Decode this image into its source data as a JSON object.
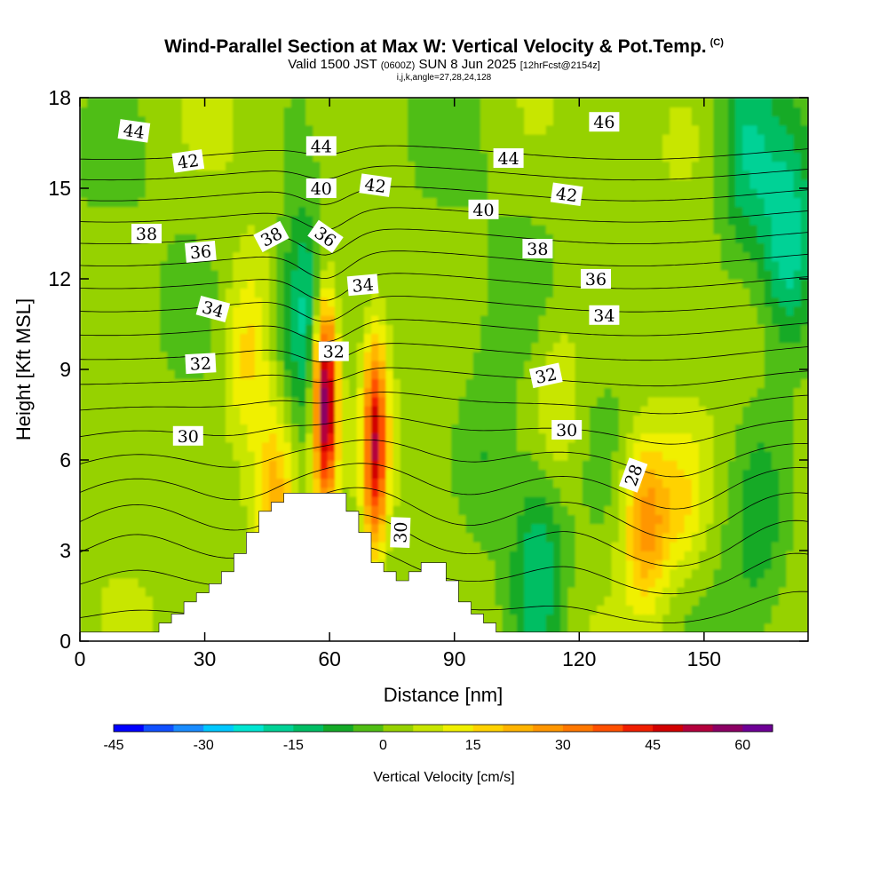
{
  "title": {
    "main": "Wind-Parallel Section at Max W: Vertical Velocity & Pot.Temp.",
    "tag": "(C)",
    "valid_prefix": "Valid 1500 JST",
    "valid_utc": "(0600Z)",
    "valid_date": "SUN 8 Jun 2025",
    "valid_fcst": "[12hrFcst@2154z]",
    "indices": "i,j,k,angle=27,28,24,128"
  },
  "colors": {
    "bands": [
      "#0000ff",
      "#1050ff",
      "#1a8cff",
      "#00c8ff",
      "#00e6d2",
      "#00d296",
      "#00be64",
      "#14aa28",
      "#50be14",
      "#96d200",
      "#c8e600",
      "#f0f000",
      "#ffd200",
      "#ffb400",
      "#ff9600",
      "#ff7800",
      "#ff5000",
      "#f01e00",
      "#d20000",
      "#b4003c",
      "#8c0064",
      "#6e0096"
    ],
    "terrain": "#ffffff",
    "contour": "#000000"
  },
  "chart_data": {
    "type": "heatmap",
    "xlabel": "Distance [nm]",
    "ylabel": "Height [Kft MSL]",
    "xlim": [
      0,
      175
    ],
    "ylim": [
      0,
      18
    ],
    "xticks": [
      "0",
      "30",
      "60",
      "90",
      "120",
      "150"
    ],
    "xtick_values": [
      0,
      30,
      60,
      90,
      120,
      150
    ],
    "yticks": [
      "0",
      "3",
      "6",
      "9",
      "12",
      "15",
      "18"
    ],
    "ytick_values": [
      0,
      3,
      6,
      9,
      12,
      15,
      18
    ],
    "colorbar": {
      "title": "Vertical Velocity [cm/s]",
      "min": -45,
      "max": 65,
      "step": 5,
      "labels": [
        "-45",
        "-30",
        "-15",
        "0",
        "15",
        "30",
        "45",
        "60"
      ],
      "label_values": [
        -45,
        -30,
        -15,
        0,
        15,
        30,
        45,
        60
      ]
    },
    "updrafts": [
      {
        "x": 59,
        "y": 8.0,
        "w_max": 62
      },
      {
        "x": 71,
        "y": 6.5,
        "w_max": 45
      },
      {
        "x": 47,
        "y": 5.0,
        "w_max": 25
      },
      {
        "x": 136,
        "y": 4.0,
        "w_max": 28
      },
      {
        "x": 40,
        "y": 9.5,
        "w_max": 15
      },
      {
        "x": 145,
        "y": 4.5,
        "w_max": 12
      },
      {
        "x": 115,
        "y": 8.0,
        "w_max": 10
      }
    ],
    "downdrafts": [
      {
        "x": 54,
        "y": 11.0,
        "w_min": -22
      },
      {
        "x": 110,
        "y": 2.5,
        "w_min": -18
      },
      {
        "x": 170,
        "y": 13.0,
        "w_min": -22
      },
      {
        "x": 160,
        "y": 16.0,
        "w_min": -15
      },
      {
        "x": 98,
        "y": 6.0,
        "w_min": -8
      },
      {
        "x": 163,
        "y": 4.0,
        "w_min": -10
      }
    ],
    "terrain": {
      "x": [
        0,
        19,
        19,
        22,
        22,
        25,
        25,
        28,
        28,
        31,
        31,
        34,
        34,
        37,
        37,
        40,
        40,
        43,
        43,
        46,
        46,
        49,
        49,
        52,
        52,
        64,
        64,
        67,
        67,
        70,
        70,
        73,
        73,
        76,
        76,
        79,
        79,
        82,
        82,
        88,
        88,
        91,
        91,
        94,
        94,
        97,
        97,
        100,
        100,
        103,
        103,
        175
      ],
      "height": [
        0.3,
        0.3,
        0.6,
        0.6,
        0.9,
        0.9,
        1.3,
        1.3,
        1.6,
        1.6,
        1.9,
        1.9,
        2.3,
        2.3,
        2.9,
        2.9,
        3.6,
        3.6,
        4.3,
        4.3,
        4.6,
        4.6,
        4.9,
        4.9,
        4.9,
        4.9,
        4.3,
        4.3,
        3.6,
        3.6,
        2.6,
        2.6,
        2.3,
        2.3,
        2.0,
        2.0,
        2.3,
        2.3,
        2.6,
        2.6,
        2.0,
        2.0,
        1.3,
        1.3,
        0.9,
        0.9,
        0.6,
        0.6,
        0.3,
        0.3,
        0.3,
        0.3
      ]
    },
    "theta_contours": {
      "levels": [
        28,
        29,
        30,
        31,
        32,
        33,
        34,
        35,
        36,
        37,
        38,
        39,
        40,
        41,
        42,
        43,
        44,
        45,
        46
      ],
      "labels": [
        {
          "text": "44",
          "x": 13,
          "y": 16.9,
          "angle": 8
        },
        {
          "text": "42",
          "x": 26,
          "y": 15.9,
          "angle": -8
        },
        {
          "text": "38",
          "x": 16,
          "y": 13.5,
          "angle": 0
        },
        {
          "text": "36",
          "x": 29,
          "y": 12.9,
          "angle": -5
        },
        {
          "text": "34",
          "x": 32,
          "y": 11.0,
          "angle": 15
        },
        {
          "text": "32",
          "x": 29,
          "y": 9.2,
          "angle": -3
        },
        {
          "text": "30",
          "x": 26,
          "y": 6.8,
          "angle": 0
        },
        {
          "text": "44",
          "x": 58,
          "y": 16.4,
          "angle": 0
        },
        {
          "text": "40",
          "x": 58,
          "y": 15.0,
          "angle": 0
        },
        {
          "text": "38",
          "x": 46,
          "y": 13.4,
          "angle": -28
        },
        {
          "text": "36",
          "x": 59,
          "y": 13.4,
          "angle": 35
        },
        {
          "text": "42",
          "x": 71,
          "y": 15.1,
          "angle": 8
        },
        {
          "text": "34",
          "x": 68,
          "y": 11.8,
          "angle": -5
        },
        {
          "text": "32",
          "x": 61,
          "y": 9.6,
          "angle": 0
        },
        {
          "text": "30",
          "x": 77,
          "y": 3.6,
          "angle": -88
        },
        {
          "text": "44",
          "x": 103,
          "y": 16.0,
          "angle": 0
        },
        {
          "text": "40",
          "x": 97,
          "y": 14.3,
          "angle": 0
        },
        {
          "text": "38",
          "x": 110,
          "y": 13.0,
          "angle": 0
        },
        {
          "text": "42",
          "x": 117,
          "y": 14.8,
          "angle": 8
        },
        {
          "text": "46",
          "x": 126,
          "y": 17.2,
          "angle": 0
        },
        {
          "text": "36",
          "x": 124,
          "y": 12.0,
          "angle": 0
        },
        {
          "text": "34",
          "x": 126,
          "y": 10.8,
          "angle": 0
        },
        {
          "text": "32",
          "x": 112,
          "y": 8.8,
          "angle": -12
        },
        {
          "text": "30",
          "x": 117,
          "y": 7.0,
          "angle": 0
        },
        {
          "text": "28",
          "x": 133,
          "y": 5.5,
          "angle": -70
        }
      ]
    }
  }
}
